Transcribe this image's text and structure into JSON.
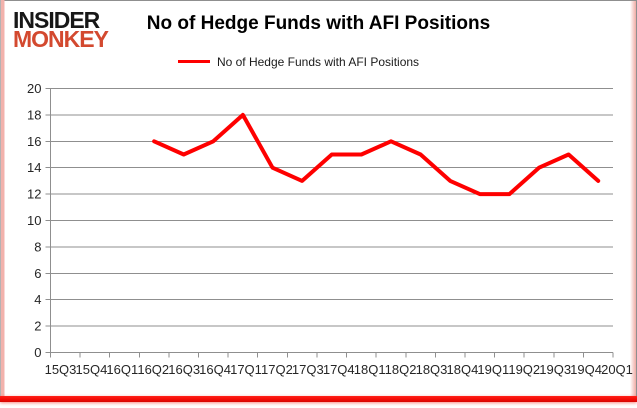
{
  "logo": {
    "line1": "INSIDER",
    "line2": "MONKEY",
    "line1_color": "#171717",
    "line2_color": "#d3492f"
  },
  "title": "No of Hedge Funds with AFI Positions",
  "legend": {
    "label": "No of Hedge Funds with AFI Positions",
    "swatch_color": "#fe0000"
  },
  "chart_data": {
    "type": "line",
    "title": "No of Hedge Funds with AFI Positions",
    "categories": [
      "15Q3",
      "15Q4",
      "16Q1",
      "16Q2",
      "16Q3",
      "16Q4",
      "17Q1",
      "17Q2",
      "17Q3",
      "17Q4",
      "18Q1",
      "18Q2",
      "18Q3",
      "18Q4",
      "19Q1",
      "19Q2",
      "19Q3",
      "19Q4",
      "20Q1"
    ],
    "yticks": [
      0,
      2,
      4,
      6,
      8,
      10,
      12,
      14,
      16,
      18,
      20
    ],
    "ylim": [
      0,
      20
    ],
    "grid": true,
    "legend_position": "top",
    "series": [
      {
        "name": "No of Hedge Funds with AFI Positions",
        "color": "#fe0000",
        "start_index": 3,
        "start_category": "16Q2",
        "values": [
          16,
          15,
          16,
          18,
          14,
          13,
          15,
          15,
          16,
          15,
          13,
          12,
          12,
          14,
          15,
          13
        ]
      }
    ]
  },
  "colors": {
    "grid": "#8f8f8f",
    "axis": "#8f8f8f",
    "tick_text": "#262626",
    "frame_border": "#8f8f8f",
    "left_stripe": "#f2b2ac",
    "bottom_bar": "#f40b06",
    "background": "#ffffff",
    "line": "#fe0000"
  }
}
